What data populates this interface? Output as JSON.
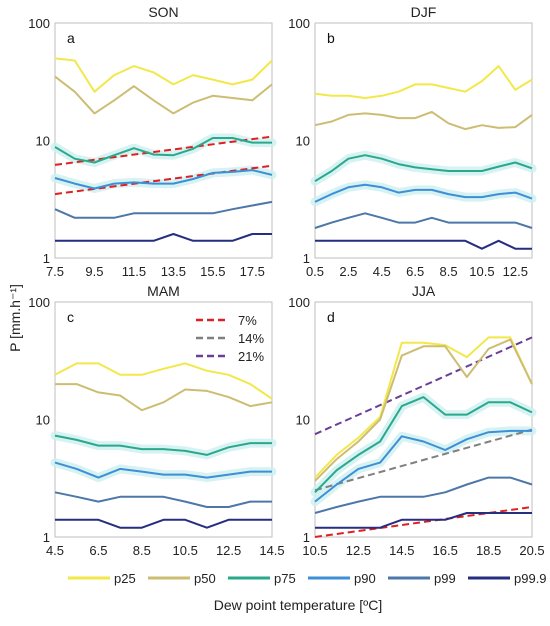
{
  "chart_data": {
    "type": "line",
    "xlabel": "Dew point temperature [ºC]",
    "ylabel": "P [mm.h⁻¹]",
    "yscale": "log",
    "ylim": [
      1,
      100
    ],
    "ytick_labels": [
      "1",
      "10",
      "100"
    ],
    "legend": {
      "placement": "bottom",
      "entries": [
        {
          "key": "p25",
          "label": "p25",
          "color": "#f2e84a"
        },
        {
          "key": "p50",
          "label": "p50",
          "color": "#cdbd73"
        },
        {
          "key": "p75",
          "label": "p75",
          "color": "#2aa98a"
        },
        {
          "key": "p90",
          "label": "p90",
          "color": "#3d8fd6"
        },
        {
          "key": "p99",
          "label": "p99",
          "color": "#4d77a8"
        },
        {
          "key": "p999",
          "label": "p99.9",
          "color": "#262e80"
        }
      ]
    },
    "scaling_legend": {
      "placement": "top-right of panel c",
      "entries": [
        {
          "label": "7%",
          "color": "#e02020"
        },
        {
          "label": "14%",
          "color": "#808080"
        },
        {
          "label": "21%",
          "color": "#6a3f96"
        }
      ]
    },
    "panels": [
      {
        "title": "SON",
        "letter": "a",
        "xlim": [
          7.5,
          18.5
        ],
        "xticks": [
          "7.5",
          "9.5",
          "11.5",
          "13.5",
          "15.5",
          "17.5"
        ],
        "x": [
          7.5,
          8.5,
          9.5,
          10.5,
          11.5,
          12.5,
          13.5,
          14.5,
          15.5,
          16.5,
          17.5,
          18.5
        ],
        "series": {
          "p25": [
            50,
            48,
            26,
            36,
            43,
            38,
            30,
            36,
            33,
            30,
            33,
            48
          ],
          "p50": [
            35,
            26,
            17,
            22,
            29,
            22,
            17,
            21,
            24,
            23,
            22,
            30
          ],
          "p75": [
            8.8,
            7.0,
            6.5,
            7.5,
            8.6,
            7.6,
            7.5,
            8.5,
            10.5,
            10.5,
            9.6,
            9.6
          ],
          "p90": [
            4.8,
            4.3,
            3.9,
            4.3,
            4.4,
            4.3,
            4.3,
            4.7,
            5.3,
            5.4,
            5.6,
            5.1
          ],
          "p99": [
            2.6,
            2.2,
            2.2,
            2.2,
            2.4,
            2.4,
            2.4,
            2.4,
            2.4,
            2.6,
            2.8,
            3.0
          ],
          "p999": [
            1.4,
            1.4,
            1.4,
            1.4,
            1.4,
            1.4,
            1.6,
            1.4,
            1.4,
            1.4,
            1.6,
            1.6
          ]
        },
        "scaling_lines": [
          {
            "label": "7%",
            "x": [
              7.5,
              18.5
            ],
            "y": [
              6.2,
              10.8
            ]
          },
          {
            "label": "7%",
            "x": [
              7.5,
              18.5
            ],
            "y": [
              3.5,
              6.1
            ]
          }
        ]
      },
      {
        "title": "DJF",
        "letter": "b",
        "xlim": [
          0.5,
          13.5
        ],
        "xticks": [
          "0.5",
          "2.5",
          "4.5",
          "6.5",
          "8.5",
          "10.5",
          "12.5"
        ],
        "x": [
          0.5,
          1.5,
          2.5,
          3.5,
          4.5,
          5.5,
          6.5,
          7.5,
          8.5,
          9.5,
          10.5,
          11.5,
          12.5,
          13.5
        ],
        "series": {
          "p25": [
            25,
            24,
            24,
            23,
            24,
            26,
            30,
            30,
            28,
            26,
            32,
            43,
            27,
            33
          ],
          "p50": [
            13.5,
            14.5,
            16.5,
            17,
            16.5,
            15.5,
            15.5,
            17.5,
            14,
            12.5,
            13.5,
            12.8,
            13,
            16.5
          ],
          "p75": [
            4.5,
            5.5,
            7.0,
            7.5,
            7.0,
            6.3,
            5.9,
            5.7,
            5.5,
            5.5,
            5.5,
            6.0,
            6.5,
            5.8
          ],
          "p90": [
            3.0,
            3.5,
            4.0,
            4.2,
            4.0,
            3.6,
            3.8,
            3.8,
            3.5,
            3.3,
            3.3,
            3.5,
            3.6,
            3.2
          ],
          "p99": [
            1.8,
            2.0,
            2.2,
            2.4,
            2.2,
            2.0,
            2.0,
            2.2,
            2.0,
            2.0,
            2.0,
            2.0,
            2.0,
            1.8
          ],
          "p999": [
            1.4,
            1.4,
            1.4,
            1.4,
            1.4,
            1.4,
            1.4,
            1.4,
            1.4,
            1.4,
            1.2,
            1.4,
            1.2,
            1.2
          ]
        },
        "scaling_lines": []
      },
      {
        "title": "MAM",
        "letter": "c",
        "xlim": [
          4.5,
          14.5
        ],
        "xticks": [
          "4.5",
          "6.5",
          "8.5",
          "10.5",
          "12.5",
          "14.5"
        ],
        "x": [
          4.5,
          5.5,
          6.5,
          7.5,
          8.5,
          9.5,
          10.5,
          11.5,
          12.5,
          13.5,
          14.5
        ],
        "series": {
          "p25": [
            24,
            30,
            30,
            24,
            24,
            27,
            30,
            26,
            24,
            20,
            15
          ],
          "p50": [
            20,
            20,
            17,
            16,
            12,
            14,
            18,
            17.5,
            15.5,
            13,
            14
          ],
          "p75": [
            7.3,
            6.7,
            6.0,
            6.0,
            5.6,
            5.6,
            5.4,
            5.0,
            5.8,
            6.3,
            6.3
          ],
          "p90": [
            4.3,
            3.8,
            3.2,
            3.8,
            3.6,
            3.4,
            3.4,
            3.2,
            3.4,
            3.6,
            3.6
          ],
          "p99": [
            2.4,
            2.2,
            2.0,
            2.2,
            2.2,
            2.2,
            2.0,
            1.8,
            1.8,
            2.0,
            2.0
          ],
          "p999": [
            1.4,
            1.4,
            1.4,
            1.2,
            1.2,
            1.4,
            1.4,
            1.2,
            1.4,
            1.4,
            1.4
          ]
        },
        "scaling_lines": []
      },
      {
        "title": "JJA",
        "letter": "d",
        "xlim": [
          10.5,
          20.5
        ],
        "xticks": [
          "10.5",
          "12.5",
          "14.5",
          "16.5",
          "18.5",
          "20.5"
        ],
        "x": [
          10.5,
          11.5,
          12.5,
          13.5,
          14.5,
          15.5,
          16.5,
          17.5,
          18.5,
          19.5,
          20.5
        ],
        "series": {
          "p25": [
            3.2,
            5.0,
            7.0,
            10.5,
            45,
            45,
            43,
            34,
            50,
            50,
            20
          ],
          "p50": [
            3.0,
            4.6,
            6.5,
            10.0,
            35,
            42,
            42,
            23,
            40,
            48,
            20
          ],
          "p75": [
            2.4,
            3.7,
            5.0,
            6.5,
            13,
            15.5,
            11,
            11,
            14,
            14,
            11.5
          ],
          "p90": [
            2.0,
            2.8,
            3.8,
            4.3,
            7.2,
            6.5,
            5.5,
            6.8,
            7.8,
            8.0,
            8.0
          ],
          "p99": [
            1.6,
            1.8,
            2.0,
            2.2,
            2.2,
            2.2,
            2.4,
            2.8,
            3.2,
            3.2,
            2.8
          ],
          "p999": [
            1.2,
            1.2,
            1.2,
            1.2,
            1.4,
            1.4,
            1.4,
            1.6,
            1.6,
            1.6,
            1.6
          ]
        },
        "scaling_lines": [
          {
            "label": "7%",
            "x": [
              10.5,
              20.5
            ],
            "y": [
              1.0,
              1.8
            ]
          },
          {
            "label": "14%",
            "x": [
              10.5,
              20.5
            ],
            "y": [
              2.5,
              8.2
            ]
          },
          {
            "label": "21%",
            "x": [
              10.5,
              20.5
            ],
            "y": [
              7.5,
              50
            ]
          }
        ]
      }
    ]
  }
}
